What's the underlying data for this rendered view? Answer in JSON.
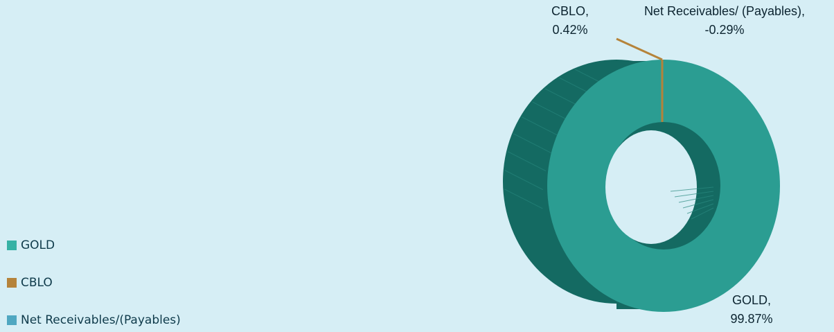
{
  "chart_data": {
    "type": "pie",
    "variant": "3d-doughnut",
    "title": "",
    "categories": [
      "GOLD",
      "CBLO",
      "Net Receivables/(Payables)"
    ],
    "values": [
      99.87,
      0.42,
      -0.29
    ],
    "unit": "%",
    "legend_position": "left-bottom",
    "series_colors": [
      "#2b9d92",
      "#b5833a",
      "#4fa7c1"
    ],
    "legend": [
      {
        "label": "GOLD",
        "color": "#35b2a5"
      },
      {
        "label": "CBLO",
        "color": "#b5833a"
      },
      {
        "label": "Net Receivables/(Payables)",
        "color": "#4fa7c1"
      }
    ],
    "data_labels": [
      {
        "name": "CBLO,",
        "value": "0.42%"
      },
      {
        "name": "Net Receivables/ (Payables),",
        "value": "-0.29%"
      },
      {
        "name": "GOLD,",
        "value": "99.87%"
      }
    ]
  }
}
